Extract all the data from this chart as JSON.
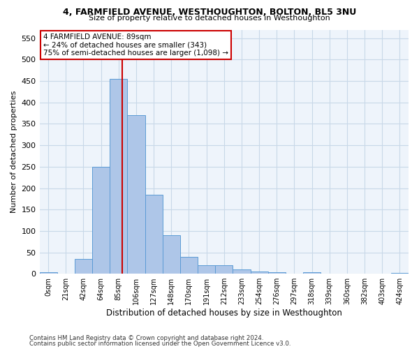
{
  "title1": "4, FARMFIELD AVENUE, WESTHOUGHTON, BOLTON, BL5 3NU",
  "title2": "Size of property relative to detached houses in Westhoughton",
  "xlabel": "Distribution of detached houses by size in Westhoughton",
  "ylabel": "Number of detached properties",
  "bin_labels": [
    "0sqm",
    "21sqm",
    "42sqm",
    "64sqm",
    "85sqm",
    "106sqm",
    "127sqm",
    "148sqm",
    "170sqm",
    "191sqm",
    "212sqm",
    "233sqm",
    "254sqm",
    "276sqm",
    "297sqm",
    "318sqm",
    "339sqm",
    "360sqm",
    "382sqm",
    "403sqm",
    "424sqm"
  ],
  "bar_heights": [
    3,
    0,
    35,
    250,
    455,
    370,
    185,
    90,
    40,
    20,
    20,
    10,
    5,
    3,
    0,
    3,
    0,
    0,
    0,
    0,
    2
  ],
  "bar_color": "#aec6e8",
  "bar_edge_color": "#5b9bd5",
  "grid_color": "#c8d8e8",
  "bg_color": "#eef4fb",
  "property_line_x": 4.19,
  "annotation_text": "4 FARMFIELD AVENUE: 89sqm\n← 24% of detached houses are smaller (343)\n75% of semi-detached houses are larger (1,098) →",
  "annotation_box_color": "#ffffff",
  "annotation_box_edge": "#cc0000",
  "vline_color": "#cc0000",
  "footer1": "Contains HM Land Registry data © Crown copyright and database right 2024.",
  "footer2": "Contains public sector information licensed under the Open Government Licence v3.0.",
  "ylim_max": 570,
  "yticks": [
    0,
    50,
    100,
    150,
    200,
    250,
    300,
    350,
    400,
    450,
    500,
    550
  ]
}
